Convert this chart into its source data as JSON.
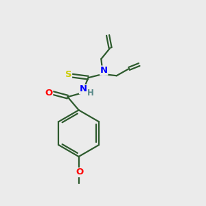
{
  "bg_color": "#ebebeb",
  "bond_color": "#2d5a2d",
  "atom_colors": {
    "O": "#ff0000",
    "N": "#0000ff",
    "S": "#cccc00",
    "C": "#000000",
    "H": "#5a8a8a"
  },
  "line_width": 1.6,
  "font_size": 8.5,
  "figsize": [
    3.0,
    3.0
  ],
  "dpi": 100
}
